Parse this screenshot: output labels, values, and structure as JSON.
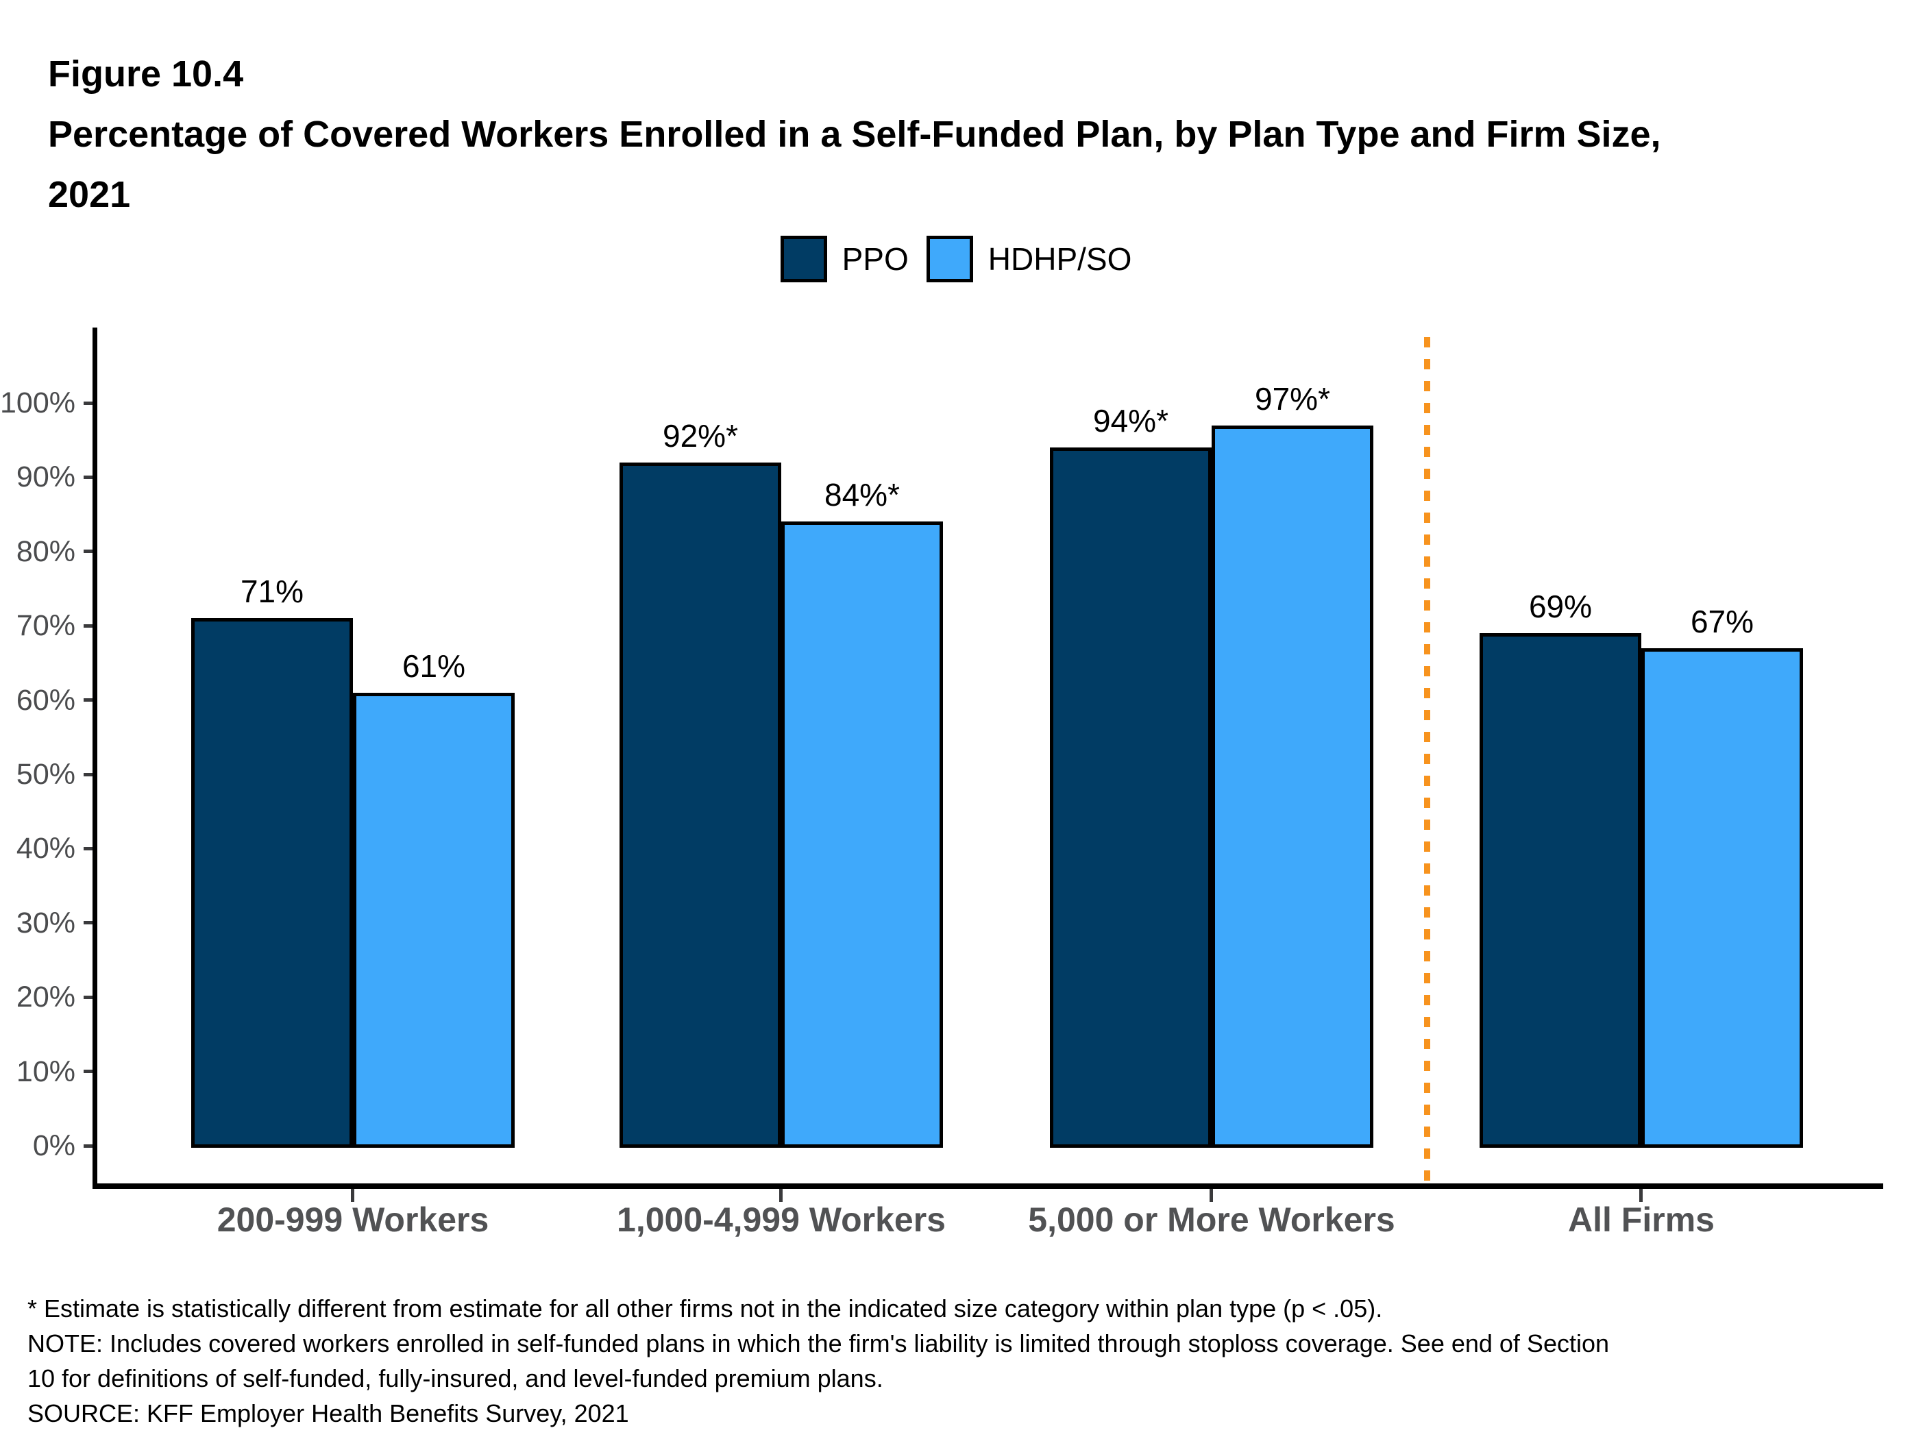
{
  "header": {
    "figure_label": "Figure 10.4",
    "title_line1": "Percentage of Covered Workers Enrolled in a Self-Funded Plan, by Plan Type and Firm Size,",
    "title_line2": "2021"
  },
  "chart_data": {
    "type": "bar",
    "title": "Percentage of Covered Workers Enrolled in a Self-Funded Plan, by Plan Type and Firm Size, 2021",
    "categories": [
      "200-999 Workers",
      "1,000-4,999 Workers",
      "5,000 or More Workers",
      "All Firms"
    ],
    "series": [
      {
        "name": "PPO",
        "color": "#013C64",
        "values": [
          71,
          92,
          94,
          69
        ],
        "labels": [
          "71%",
          "92%*",
          "94%*",
          "69%"
        ]
      },
      {
        "name": "HDHP/SO",
        "color": "#3FA9FB",
        "values": [
          61,
          84,
          97,
          67
        ],
        "labels": [
          "61%",
          "84%*",
          "97%*",
          "67%"
        ]
      }
    ],
    "y_ticks": [
      0,
      10,
      20,
      30,
      40,
      50,
      60,
      70,
      80,
      90,
      100
    ],
    "y_tick_suffix": "%",
    "ylim": [
      0,
      100
    ],
    "grid": false,
    "legend_position": "top",
    "bar_border_color": "#000000",
    "separator": {
      "between_categories": [
        2,
        3
      ],
      "color": "#F7931E",
      "style": "dashed"
    }
  },
  "footnotes": {
    "line1": "* Estimate is statistically different from estimate for all other firms not in the indicated size category within plan type (p < .05).",
    "line2": "NOTE: Includes covered workers enrolled in self-funded plans in which the firm's liability is limited through stoploss coverage. See end of Section",
    "line3": "10 for definitions of self-funded, fully-insured, and level-funded premium plans.",
    "line4": "SOURCE: KFF Employer Health Benefits Survey, 2021"
  }
}
